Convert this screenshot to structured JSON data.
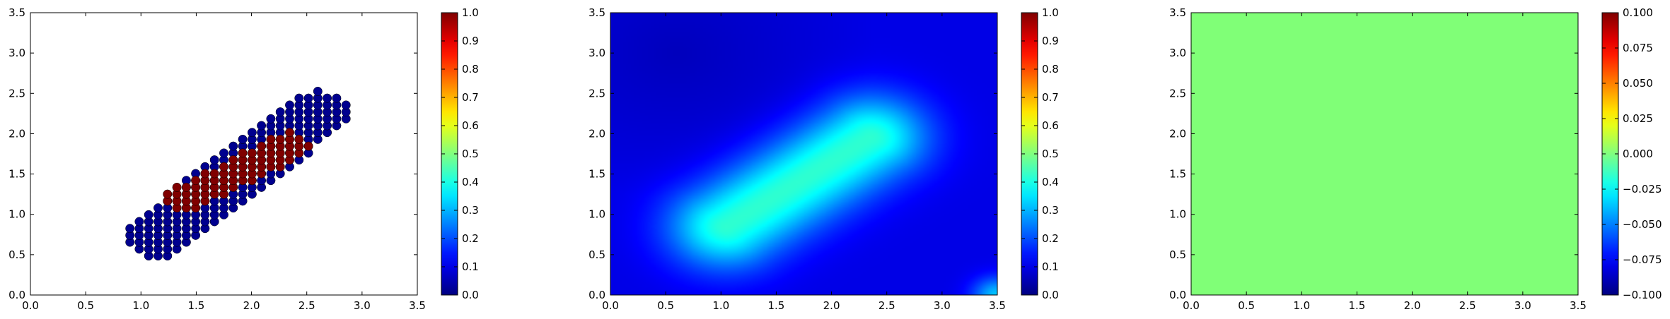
{
  "chart_data": [
    {
      "type": "scatter",
      "title": "",
      "xlabel": "",
      "ylabel": "",
      "xlim": [
        0,
        3.5
      ],
      "ylim": [
        0,
        3.5
      ],
      "xticks": [
        "0.0",
        "0.5",
        "1.0",
        "1.5",
        "2.0",
        "2.5",
        "3.0",
        "3.5"
      ],
      "yticks": [
        "0.0",
        "0.5",
        "1.0",
        "1.5",
        "2.0",
        "2.5",
        "3.0",
        "3.5"
      ],
      "colormap": "jet",
      "grid": false,
      "colorbar": {
        "range": [
          0,
          1
        ],
        "ticks": [
          "0.0",
          "0.1",
          "0.2",
          "0.3",
          "0.4",
          "0.5",
          "0.6",
          "0.7",
          "0.8",
          "0.9",
          "1.0"
        ]
      },
      "series": [
        {
          "value": 0.0,
          "color": "#00008f",
          "region": {
            "from": [
              1.15,
              0.75
            ],
            "to": [
              2.6,
              2.25
            ],
            "half_width": 0.28
          }
        },
        {
          "value": 1.0,
          "color": "#800000",
          "region": {
            "from": [
              1.4,
              1.2
            ],
            "to": [
              2.35,
              1.85
            ],
            "half_width": 0.17
          }
        }
      ]
    },
    {
      "type": "heatmap",
      "title": "",
      "xlabel": "",
      "ylabel": "",
      "xlim": [
        0,
        3.5
      ],
      "ylim": [
        0,
        3.5
      ],
      "xticks": [
        "0.0",
        "0.5",
        "1.0",
        "1.5",
        "2.0",
        "2.5",
        "3.0",
        "3.5"
      ],
      "yticks": [
        "0.0",
        "0.5",
        "1.0",
        "1.5",
        "2.0",
        "2.5",
        "3.0",
        "3.5"
      ],
      "colormap": "jet",
      "colorbar": {
        "range": [
          0,
          1
        ],
        "ticks": [
          "0.0",
          "0.1",
          "0.2",
          "0.3",
          "0.4",
          "0.5",
          "0.6",
          "0.7",
          "0.8",
          "0.9",
          "1.0"
        ]
      },
      "field": {
        "baseline": 0.1,
        "peak_value": 0.42,
        "ridge_from": [
          1.05,
          0.85
        ],
        "ridge_to": [
          2.35,
          1.95
        ],
        "ridge_width": 0.55
      }
    },
    {
      "type": "heatmap",
      "title": "",
      "xlabel": "",
      "ylabel": "",
      "xlim": [
        0,
        3.5
      ],
      "ylim": [
        0,
        3.5
      ],
      "xticks": [
        "0.0",
        "0.5",
        "1.0",
        "1.5",
        "2.0",
        "2.5",
        "3.0",
        "3.5"
      ],
      "yticks": [
        "0.0",
        "0.5",
        "1.0",
        "1.5",
        "2.0",
        "2.5",
        "3.0",
        "3.5"
      ],
      "colormap": "jet",
      "colorbar": {
        "range": [
          -0.1,
          0.1
        ],
        "ticks": [
          "−0.100",
          "−0.075",
          "−0.050",
          "−0.025",
          "0.000",
          "0.025",
          "0.050",
          "0.075",
          "0.100"
        ]
      },
      "field": {
        "constant_value": 0.0,
        "fill_color": "#80ff77"
      }
    }
  ]
}
